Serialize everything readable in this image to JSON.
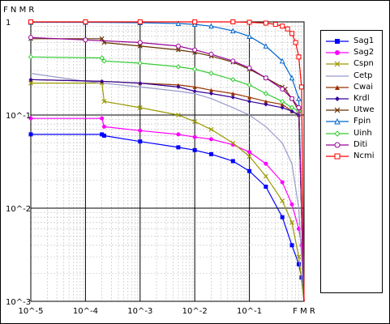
{
  "chart_data": {
    "type": "line",
    "title": "",
    "xlabel": "F M R",
    "ylabel": "F N M R",
    "x_scale": "log",
    "y_scale": "log",
    "xlim": [
      1e-05,
      1
    ],
    "ylim": [
      0.001,
      1
    ],
    "grid": true,
    "legend_position": "right",
    "x_tick_labels": [
      "10^-5",
      "10^-4",
      "10^-3",
      "10^-2",
      "10^-1",
      "F M R"
    ],
    "y_tick_labels": [
      "1",
      "10^-1",
      "10^-2",
      "10^-3"
    ],
    "series": [
      {
        "name": "Sag1",
        "color": "#0000ff",
        "marker": "square",
        "x": [
          1e-05,
          0.0002,
          0.00022,
          0.001,
          0.005,
          0.01,
          0.02,
          0.05,
          0.1,
          0.2,
          0.4,
          0.6,
          0.8,
          0.9,
          1
        ],
        "y": [
          0.062,
          0.062,
          0.06,
          0.052,
          0.045,
          0.042,
          0.038,
          0.032,
          0.025,
          0.017,
          0.008,
          0.004,
          0.0025,
          0.0018,
          0.001
        ]
      },
      {
        "name": "Sag2",
        "color": "#ff00ff",
        "marker": "circle",
        "x": [
          1e-05,
          0.0002,
          0.00022,
          0.001,
          0.005,
          0.01,
          0.02,
          0.05,
          0.1,
          0.2,
          0.4,
          0.6,
          0.8,
          0.9,
          1
        ],
        "y": [
          0.092,
          0.092,
          0.075,
          0.068,
          0.062,
          0.058,
          0.055,
          0.048,
          0.04,
          0.03,
          0.019,
          0.011,
          0.006,
          0.004,
          0.001
        ]
      },
      {
        "name": "Cspn",
        "color": "#999900",
        "marker": "x",
        "x": [
          1e-05,
          0.0002,
          0.00022,
          0.001,
          0.005,
          0.01,
          0.02,
          0.05,
          0.1,
          0.2,
          0.4,
          0.6,
          0.8,
          1
        ],
        "y": [
          0.22,
          0.22,
          0.14,
          0.12,
          0.1,
          0.085,
          0.07,
          0.05,
          0.036,
          0.022,
          0.012,
          0.007,
          0.003,
          0.001
        ]
      },
      {
        "name": "Cetp",
        "color": "#9999cc",
        "marker": "none",
        "x": [
          1e-05,
          0.0001,
          0.001,
          0.005,
          0.01,
          0.02,
          0.05,
          0.1,
          0.2,
          0.4,
          0.6,
          0.8,
          1
        ],
        "y": [
          0.28,
          0.23,
          0.2,
          0.18,
          0.17,
          0.15,
          0.12,
          0.1,
          0.075,
          0.05,
          0.03,
          0.01,
          0.001
        ]
      },
      {
        "name": "Cwai",
        "color": "#993300",
        "marker": "triangle",
        "x": [
          1e-05,
          0.0002,
          0.001,
          0.005,
          0.01,
          0.02,
          0.05,
          0.1,
          0.2,
          0.4,
          0.6,
          0.8,
          1
        ],
        "y": [
          0.24,
          0.23,
          0.22,
          0.21,
          0.2,
          0.185,
          0.17,
          0.155,
          0.14,
          0.13,
          0.11,
          0.1,
          0.001
        ]
      },
      {
        "name": "Krdl",
        "color": "#330099",
        "marker": "diamond",
        "x": [
          1e-05,
          0.0002,
          0.001,
          0.005,
          0.01,
          0.02,
          0.05,
          0.1,
          0.2,
          0.4,
          0.6,
          0.8,
          1
        ],
        "y": [
          0.24,
          0.23,
          0.22,
          0.2,
          0.18,
          0.17,
          0.155,
          0.14,
          0.13,
          0.12,
          0.11,
          0.1,
          0.001
        ]
      },
      {
        "name": "Utwe",
        "color": "#663300",
        "marker": "x",
        "x": [
          1e-05,
          0.0002,
          0.00022,
          0.001,
          0.005,
          0.01,
          0.02,
          0.05,
          0.1,
          0.2,
          0.4,
          0.45,
          0.6,
          0.8,
          1
        ],
        "y": [
          0.66,
          0.66,
          0.6,
          0.55,
          0.5,
          0.47,
          0.43,
          0.37,
          0.31,
          0.25,
          0.2,
          0.19,
          0.15,
          0.11,
          0.001
        ]
      },
      {
        "name": "Fpin",
        "color": "#0066cc",
        "marker": "triangle-open",
        "x": [
          1e-05,
          0.0001,
          0.001,
          0.005,
          0.01,
          0.02,
          0.05,
          0.1,
          0.2,
          0.4,
          0.6,
          0.8,
          1
        ],
        "y": [
          0.99,
          0.99,
          0.98,
          0.96,
          0.94,
          0.9,
          0.8,
          0.7,
          0.55,
          0.38,
          0.25,
          0.15,
          0.001
        ]
      },
      {
        "name": "Uinh",
        "color": "#33cc33",
        "marker": "diamond-open",
        "x": [
          1e-05,
          0.0002,
          0.00022,
          0.001,
          0.005,
          0.01,
          0.02,
          0.05,
          0.1,
          0.2,
          0.4,
          0.6,
          0.8,
          1
        ],
        "y": [
          0.42,
          0.41,
          0.38,
          0.36,
          0.33,
          0.31,
          0.28,
          0.24,
          0.21,
          0.17,
          0.14,
          0.12,
          0.11,
          0.001
        ]
      },
      {
        "name": "Diti",
        "color": "#990099",
        "marker": "circle-open",
        "x": [
          1e-05,
          0.0001,
          0.001,
          0.005,
          0.01,
          0.02,
          0.05,
          0.1,
          0.2,
          0.4,
          0.6,
          0.8,
          1
        ],
        "y": [
          0.68,
          0.64,
          0.6,
          0.55,
          0.5,
          0.45,
          0.38,
          0.32,
          0.25,
          0.19,
          0.15,
          0.12,
          0.001
        ]
      },
      {
        "name": "Ncmi",
        "color": "#ff0000",
        "marker": "square-open",
        "x": [
          1e-05,
          0.0001,
          0.001,
          0.01,
          0.05,
          0.1,
          0.2,
          0.3,
          0.4,
          0.5,
          0.6,
          0.7,
          0.8,
          0.9,
          1
        ],
        "y": [
          1,
          1,
          1,
          1,
          1,
          0.99,
          0.97,
          0.94,
          0.9,
          0.84,
          0.75,
          0.6,
          0.42,
          0.2,
          0.001
        ]
      }
    ]
  }
}
